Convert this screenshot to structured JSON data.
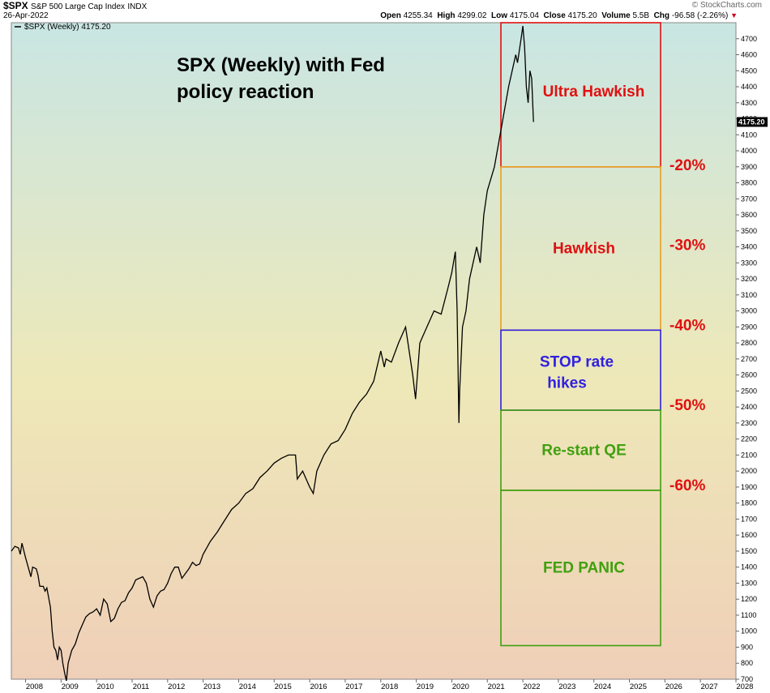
{
  "header": {
    "symbol": "$SPX",
    "name": "S&P 500 Large Cap Index",
    "exchange": "INDX",
    "date": "26-Apr-2022",
    "brand": "© StockCharts.com",
    "open_label": "Open",
    "open": "4255.34",
    "high_label": "High",
    "high": "4299.02",
    "low_label": "Low",
    "low": "4175.04",
    "close_label": "Close",
    "close": "4175.20",
    "volume_label": "Volume",
    "volume": "5.5B",
    "chg_label": "Chg",
    "chg": "-96.58 (-2.26%)"
  },
  "chart_data": {
    "type": "line",
    "title": "SPX (Weekly) with Fed policy reaction",
    "legend": "$SPX (Weekly) 4175.20",
    "last_value_label": "4175.20",
    "xlim": [
      2007.6,
      2028.0
    ],
    "ylim": [
      700,
      4800
    ],
    "y_ticks": [
      700,
      800,
      900,
      1000,
      1100,
      1200,
      1300,
      1400,
      1500,
      1600,
      1700,
      1800,
      1900,
      2000,
      2100,
      2200,
      2300,
      2400,
      2500,
      2600,
      2700,
      2800,
      2900,
      3000,
      3100,
      3200,
      3300,
      3400,
      3500,
      3600,
      3700,
      3800,
      3900,
      4000,
      4100,
      4200,
      4300,
      4400,
      4500,
      4600,
      4700
    ],
    "x_ticks": [
      "2008",
      "2009",
      "2010",
      "2011",
      "2012",
      "2013",
      "2014",
      "2015",
      "2016",
      "2017",
      "2018",
      "2019",
      "2020",
      "2021",
      "2022",
      "2023",
      "2024",
      "2025",
      "2026",
      "2027",
      "2028"
    ],
    "series": [
      {
        "x": [
          2007.6,
          2007.7,
          2007.8,
          2007.85,
          2007.9,
          2008.0,
          2008.1,
          2008.15,
          2008.2,
          2008.3,
          2008.35,
          2008.4,
          2008.5,
          2008.55,
          2008.6,
          2008.7,
          2008.75,
          2008.8,
          2008.85,
          2008.9,
          2008.95,
          2009.0,
          2009.05,
          2009.1,
          2009.15,
          2009.2,
          2009.3,
          2009.4,
          2009.5,
          2009.6,
          2009.7,
          2009.8,
          2009.9,
          2010.0,
          2010.1,
          2010.2,
          2010.3,
          2010.4,
          2010.5,
          2010.6,
          2010.7,
          2010.8,
          2010.9,
          2011.0,
          2011.1,
          2011.2,
          2011.3,
          2011.4,
          2011.5,
          2011.6,
          2011.7,
          2011.8,
          2011.9,
          2012.0,
          2012.1,
          2012.2,
          2012.3,
          2012.4,
          2012.5,
          2012.6,
          2012.7,
          2012.8,
          2012.9,
          2013.0,
          2013.2,
          2013.4,
          2013.6,
          2013.8,
          2014.0,
          2014.2,
          2014.4,
          2014.6,
          2014.8,
          2015.0,
          2015.2,
          2015.4,
          2015.6,
          2015.65,
          2015.8,
          2016.0,
          2016.1,
          2016.2,
          2016.4,
          2016.6,
          2016.8,
          2017.0,
          2017.2,
          2017.4,
          2017.6,
          2017.8,
          2018.0,
          2018.1,
          2018.15,
          2018.3,
          2018.5,
          2018.7,
          2018.8,
          2018.9,
          2018.98,
          2019.1,
          2019.3,
          2019.4,
          2019.5,
          2019.7,
          2019.9,
          2020.0,
          2020.1,
          2020.15,
          2020.2,
          2020.22,
          2020.3,
          2020.4,
          2020.5,
          2020.6,
          2020.7,
          2020.8,
          2020.9,
          2021.0,
          2021.2,
          2021.4,
          2021.6,
          2021.7,
          2021.8,
          2021.85,
          2021.95,
          2022.0,
          2022.05,
          2022.1,
          2022.15,
          2022.2,
          2022.25,
          2022.3
        ],
        "y": [
          1500,
          1530,
          1520,
          1480,
          1550,
          1460,
          1380,
          1340,
          1400,
          1390,
          1350,
          1280,
          1280,
          1250,
          1270,
          1150,
          1000,
          900,
          880,
          820,
          900,
          880,
          800,
          740,
          690,
          800,
          880,
          920,
          990,
          1040,
          1090,
          1110,
          1120,
          1140,
          1100,
          1200,
          1170,
          1060,
          1080,
          1140,
          1180,
          1190,
          1240,
          1270,
          1320,
          1330,
          1340,
          1300,
          1200,
          1150,
          1220,
          1250,
          1260,
          1300,
          1360,
          1400,
          1400,
          1330,
          1360,
          1390,
          1430,
          1410,
          1420,
          1480,
          1560,
          1620,
          1690,
          1760,
          1800,
          1860,
          1890,
          1960,
          2000,
          2050,
          2080,
          2100,
          2100,
          1950,
          2000,
          1900,
          1860,
          2000,
          2100,
          2170,
          2190,
          2260,
          2360,
          2430,
          2480,
          2560,
          2750,
          2650,
          2700,
          2680,
          2800,
          2900,
          2750,
          2600,
          2450,
          2800,
          2900,
          2950,
          3000,
          2980,
          3150,
          3240,
          3370,
          3000,
          2300,
          2500,
          2900,
          3000,
          3200,
          3300,
          3400,
          3300,
          3600,
          3750,
          3900,
          4150,
          4400,
          4500,
          4600,
          4550,
          4700,
          4780,
          4650,
          4400,
          4300,
          4500,
          4450,
          4180
        ]
      }
    ],
    "zones": [
      {
        "label": "Ultra Hawkish",
        "top": 4800,
        "bottom": 3900,
        "border": "#e01010",
        "text_color": "#e01010"
      },
      {
        "label": "Hawkish",
        "top": 3900,
        "bottom": 2880,
        "border": "#e8a020",
        "text_color": "#e01010"
      },
      {
        "label": "STOP rate hikes",
        "top": 2880,
        "bottom": 2380,
        "border": "#3020e0",
        "text_color": "#3020e0"
      },
      {
        "label": "Re-start QE",
        "top": 2380,
        "bottom": 1880,
        "border": "#40a010",
        "text_color": "#40a010"
      },
      {
        "label": "FED PANIC",
        "top": 1880,
        "bottom": 910,
        "border": "#40a010",
        "text_color": "#40a010"
      }
    ],
    "drawdowns": [
      {
        "label": "-20%",
        "value": 3900
      },
      {
        "label": "-30%",
        "value": 3400
      },
      {
        "label": "-40%",
        "value": 2900
      },
      {
        "label": "-50%",
        "value": 2400
      },
      {
        "label": "-60%",
        "value": 1900
      }
    ],
    "colors": {
      "line": "#000000",
      "bg_top": "#c9e6e3",
      "bg_mid": "#eee8b8",
      "bg_bottom": "#efcfb8",
      "drawdown": "#e01010"
    }
  }
}
